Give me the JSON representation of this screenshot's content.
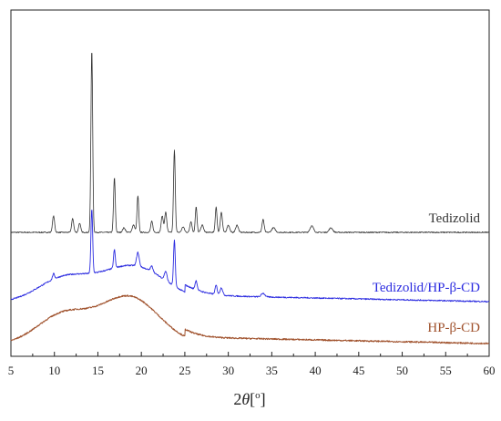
{
  "chart_data": {
    "type": "line",
    "title": "",
    "xlabel": "2θ[°]",
    "xlabel_parts": {
      "symbol": "2",
      "var": "θ",
      "open": "[",
      "sup": "o",
      "close": "]"
    },
    "ylabel": "",
    "xlim": [
      5,
      60
    ],
    "x_ticks": [
      5,
      10,
      15,
      20,
      25,
      30,
      35,
      40,
      45,
      50,
      55,
      60
    ],
    "y_ticks_shown": false,
    "grid": false,
    "colors": {
      "tedizolid": "#333333",
      "complex": "#2b2be0",
      "hpbcd": "#a0522d",
      "frame": "#222222"
    },
    "series": [
      {
        "name": "Tedizolid",
        "baseline": 255,
        "peaks": [
          [
            9.9,
            18,
            0.12
          ],
          [
            12.1,
            15,
            0.12
          ],
          [
            12.9,
            10,
            0.12
          ],
          [
            14.3,
            200,
            0.1
          ],
          [
            16.9,
            60,
            0.1
          ],
          [
            18.0,
            5,
            0.15
          ],
          [
            19.1,
            8,
            0.15
          ],
          [
            19.6,
            40,
            0.1
          ],
          [
            21.2,
            12,
            0.12
          ],
          [
            22.4,
            18,
            0.12
          ],
          [
            22.8,
            22,
            0.12
          ],
          [
            23.8,
            90,
            0.1
          ],
          [
            24.8,
            6,
            0.15
          ],
          [
            25.7,
            12,
            0.12
          ],
          [
            26.3,
            28,
            0.1
          ],
          [
            27.0,
            8,
            0.15
          ],
          [
            28.6,
            28,
            0.1
          ],
          [
            29.2,
            22,
            0.12
          ],
          [
            30.0,
            8,
            0.15
          ],
          [
            31.0,
            8,
            0.15
          ],
          [
            34.0,
            14,
            0.12
          ],
          [
            35.2,
            5,
            0.2
          ],
          [
            39.6,
            7,
            0.2
          ],
          [
            41.8,
            5,
            0.2
          ]
        ]
      },
      {
        "name": "Tedizolid/HP-β-CD",
        "baseline": 332,
        "hump_centers": [
          [
            11.0,
            25,
            3.0
          ],
          [
            19.0,
            40,
            3.8
          ]
        ],
        "peaks": [
          [
            9.9,
            6,
            0.12
          ],
          [
            14.3,
            70,
            0.1
          ],
          [
            16.9,
            20,
            0.1
          ],
          [
            19.6,
            15,
            0.15
          ],
          [
            21.2,
            6,
            0.15
          ],
          [
            22.8,
            10,
            0.15
          ],
          [
            23.8,
            50,
            0.1
          ],
          [
            26.3,
            10,
            0.12
          ],
          [
            28.6,
            10,
            0.12
          ],
          [
            29.2,
            8,
            0.15
          ],
          [
            34.0,
            4,
            0.2
          ]
        ]
      },
      {
        "name": "HP-β-CD",
        "baseline": 378,
        "hump_centers": [
          [
            11.0,
            32,
            3.0
          ],
          [
            18.6,
            52,
            3.4
          ]
        ]
      }
    ]
  }
}
